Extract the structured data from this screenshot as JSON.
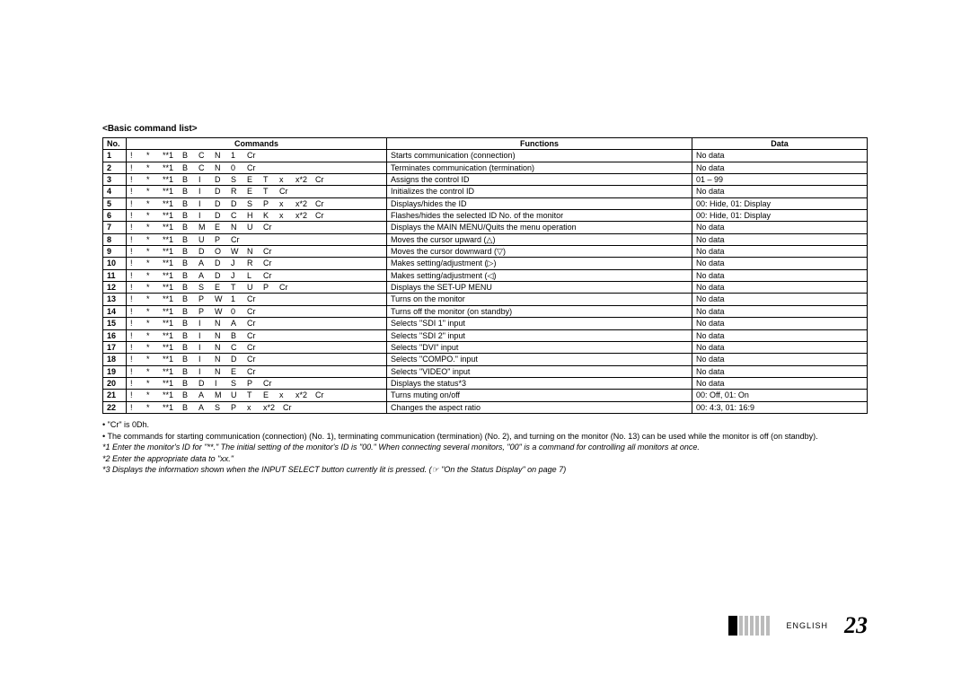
{
  "title": "<Basic command list>",
  "headers": {
    "no": "No.",
    "commands": "Commands",
    "functions": "Functions",
    "data": "Data"
  },
  "rows": [
    {
      "no": "1",
      "cmd": [
        "!",
        "*",
        "**1",
        "B",
        "C",
        "N",
        "1",
        "Cr"
      ],
      "func": "Starts communication (connection)",
      "data": "No data"
    },
    {
      "no": "2",
      "cmd": [
        "!",
        "*",
        "**1",
        "B",
        "C",
        "N",
        "0",
        "Cr"
      ],
      "func": "Terminates communication (termination)",
      "data": "No data"
    },
    {
      "no": "3",
      "cmd": [
        "!",
        "*",
        "**1",
        "B",
        "I",
        "D",
        "S",
        "E",
        "T",
        "x",
        "x*2",
        "Cr"
      ],
      "func": "Assigns the control ID",
      "data": "01 – 99"
    },
    {
      "no": "4",
      "cmd": [
        "!",
        "*",
        "**1",
        "B",
        "I",
        "D",
        "R",
        "E",
        "T",
        "Cr"
      ],
      "func": "Initializes the control ID",
      "data": "No data"
    },
    {
      "no": "5",
      "cmd": [
        "!",
        "*",
        "**1",
        "B",
        "I",
        "D",
        "D",
        "S",
        "P",
        "x",
        "x*2",
        "Cr"
      ],
      "func": "Displays/hides the ID",
      "data": "00: Hide, 01: Display"
    },
    {
      "no": "6",
      "cmd": [
        "!",
        "*",
        "**1",
        "B",
        "I",
        "D",
        "C",
        "H",
        "K",
        "x",
        "x*2",
        "Cr"
      ],
      "func": "Flashes/hides the selected ID No. of the monitor",
      "data": "00: Hide, 01: Display"
    },
    {
      "no": "7",
      "cmd": [
        "!",
        "*",
        "**1",
        "B",
        "M",
        "E",
        "N",
        "U",
        "Cr"
      ],
      "func": "Displays the MAIN MENU/Quits the menu operation",
      "data": "No data"
    },
    {
      "no": "8",
      "cmd": [
        "!",
        "*",
        "**1",
        "B",
        "U",
        "P",
        "Cr"
      ],
      "func": "Moves the cursor upward (△)",
      "data": "No data"
    },
    {
      "no": "9",
      "cmd": [
        "!",
        "*",
        "**1",
        "B",
        "D",
        "O",
        "W",
        "N",
        "Cr"
      ],
      "func": "Moves the cursor downward (▽)",
      "data": "No data"
    },
    {
      "no": "10",
      "cmd": [
        "!",
        "*",
        "**1",
        "B",
        "A",
        "D",
        "J",
        "R",
        "Cr"
      ],
      "func": "Makes setting/adjustment (▷)",
      "data": "No data"
    },
    {
      "no": "11",
      "cmd": [
        "!",
        "*",
        "**1",
        "B",
        "A",
        "D",
        "J",
        "L",
        "Cr"
      ],
      "func": "Makes setting/adjustment (◁)",
      "data": "No data"
    },
    {
      "no": "12",
      "cmd": [
        "!",
        "*",
        "**1",
        "B",
        "S",
        "E",
        "T",
        "U",
        "P",
        "Cr"
      ],
      "func": "Displays the SET-UP MENU",
      "data": "No data"
    },
    {
      "no": "13",
      "cmd": [
        "!",
        "*",
        "**1",
        "B",
        "P",
        "W",
        "1",
        "Cr"
      ],
      "func": "Turns on the monitor",
      "data": "No data"
    },
    {
      "no": "14",
      "cmd": [
        "!",
        "*",
        "**1",
        "B",
        "P",
        "W",
        "0",
        "Cr"
      ],
      "func": "Turns off the monitor (on standby)",
      "data": "No data"
    },
    {
      "no": "15",
      "cmd": [
        "!",
        "*",
        "**1",
        "B",
        "I",
        "N",
        "A",
        "Cr"
      ],
      "func": "Selects \"SDI 1\" input",
      "data": "No data"
    },
    {
      "no": "16",
      "cmd": [
        "!",
        "*",
        "**1",
        "B",
        "I",
        "N",
        "B",
        "Cr"
      ],
      "func": "Selects \"SDI 2\" input",
      "data": "No data"
    },
    {
      "no": "17",
      "cmd": [
        "!",
        "*",
        "**1",
        "B",
        "I",
        "N",
        "C",
        "Cr"
      ],
      "func": "Selects \"DVI\" input",
      "data": "No data"
    },
    {
      "no": "18",
      "cmd": [
        "!",
        "*",
        "**1",
        "B",
        "I",
        "N",
        "D",
        "Cr"
      ],
      "func": "Selects \"COMPO.\" input",
      "data": "No data"
    },
    {
      "no": "19",
      "cmd": [
        "!",
        "*",
        "**1",
        "B",
        "I",
        "N",
        "E",
        "Cr"
      ],
      "func": "Selects \"VIDEO\" input",
      "data": "No data"
    },
    {
      "no": "20",
      "cmd": [
        "!",
        "*",
        "**1",
        "B",
        "D",
        "I",
        "S",
        "P",
        "Cr"
      ],
      "func": "Displays the status*3",
      "data": "No data"
    },
    {
      "no": "21",
      "cmd": [
        "!",
        "*",
        "**1",
        "B",
        "A",
        "M",
        "U",
        "T",
        "E",
        "x",
        "x*2",
        "Cr"
      ],
      "func": "Turns muting on/off",
      "data": "00: Off, 01: On"
    },
    {
      "no": "22",
      "cmd": [
        "!",
        "*",
        "**1",
        "B",
        "A",
        "S",
        "P",
        "x",
        "x*2",
        "Cr"
      ],
      "func": "Changes the aspect ratio",
      "data": "00: 4:3, 01: 16:9"
    }
  ],
  "notes": {
    "n1": "• \"Cr\" is 0Dh.",
    "n2": "• The commands for starting communication (connection) (No. 1), terminating communication (termination) (No. 2), and turning on the monitor (No. 13) can be used while the monitor is off (on standby).",
    "n3": "*1 Enter the monitor's ID for \"**.\" The initial setting of the monitor's ID is \"00.\" When connecting several monitors, \"00\" is a command for controlling all monitors at once.",
    "n4": "*2 Enter the appropriate data to \"xx.\"",
    "n5": "*3 Displays the information shown when the INPUT SELECT button currently lit is pressed. (☞ \"On the Status Display\" on page 7)"
  },
  "footer": {
    "lang": "ENGLISH",
    "page": "23"
  },
  "colors": {
    "border": "#000000",
    "text": "#000000",
    "bg": "#ffffff"
  }
}
